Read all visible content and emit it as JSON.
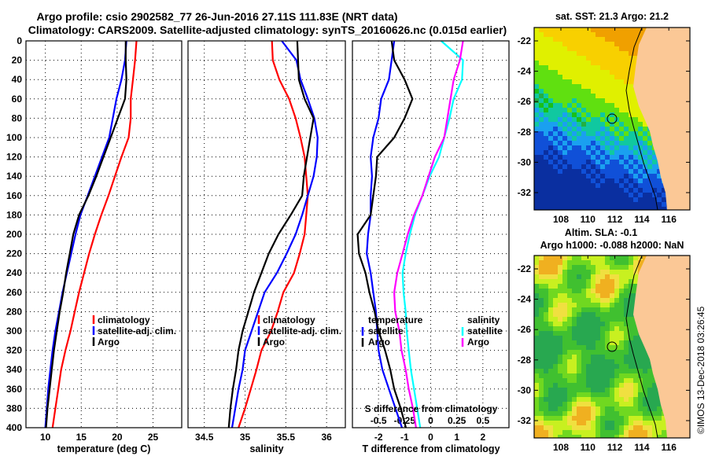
{
  "header": {
    "title_line1": "Argo profile: csio 2902582_77 26-Jun-2016 27.11S 111.83E (NRT data)",
    "title_line2": "Climatology: CARS2009. Satellite-adjusted climatology: synTS_20160626.nc (0.015d earlier)"
  },
  "colors": {
    "climatology": "#ff0000",
    "satellite": "#0000ff",
    "argo": "#000000",
    "salinity_satellite": "#00ffff",
    "salinity_argo": "#ff00ff",
    "land": "#fbc896"
  },
  "chart_data": [
    {
      "type": "line",
      "name": "temperature-profile",
      "xlabel": "temperature (deg C)",
      "ylabel": "",
      "xlim": [
        7.3,
        29.0
      ],
      "ylim": [
        400,
        0
      ],
      "xticks": [
        10,
        15,
        20,
        25
      ],
      "yticks": [
        0,
        20,
        40,
        60,
        80,
        100,
        120,
        140,
        160,
        180,
        200,
        220,
        240,
        260,
        280,
        300,
        320,
        340,
        360,
        380,
        400
      ],
      "grid": true,
      "legend": {
        "placement": "lower-right",
        "entries": [
          "climatology",
          "satellite-adj. clim.",
          "Argo"
        ]
      },
      "depth": [
        0,
        20,
        40,
        60,
        80,
        100,
        120,
        140,
        160,
        180,
        200,
        220,
        240,
        260,
        280,
        300,
        320,
        340,
        360,
        380,
        400
      ],
      "series": [
        {
          "name": "climatology",
          "color": "#ff0000",
          "values": [
            22.7,
            22.5,
            22.2,
            21.9,
            21.9,
            21.6,
            20.6,
            19.7,
            18.8,
            17.8,
            16.9,
            16.1,
            15.4,
            14.7,
            14.1,
            13.5,
            12.8,
            12.2,
            11.8,
            11.4,
            11.0
          ]
        },
        {
          "name": "satellite-adj. clim.",
          "color": "#0000ff",
          "values": [
            21.3,
            21.1,
            20.6,
            19.9,
            19.4,
            18.9,
            17.9,
            16.9,
            15.9,
            14.9,
            14.2,
            13.6,
            13.0,
            12.4,
            11.9,
            11.4,
            11.0,
            10.7,
            10.4,
            10.2,
            10.0
          ]
        },
        {
          "name": "Argo",
          "color": "#000000",
          "values": [
            21.2,
            21.2,
            21.3,
            21.1,
            20.1,
            19.1,
            18.1,
            17.1,
            16.0,
            14.7,
            13.9,
            13.4,
            12.9,
            12.5,
            12.0,
            11.6,
            11.2,
            10.9,
            10.6,
            10.3,
            10.1
          ]
        }
      ]
    },
    {
      "type": "line",
      "name": "salinity-profile",
      "xlabel": "salinity",
      "ylabel": "",
      "xlim": [
        34.3,
        36.23
      ],
      "ylim": [
        400,
        0
      ],
      "xticks": [
        34.5,
        35,
        35.5,
        36
      ],
      "yticks": [
        0,
        20,
        40,
        60,
        80,
        100,
        120,
        140,
        160,
        180,
        200,
        220,
        240,
        260,
        280,
        300,
        320,
        340,
        360,
        380,
        400
      ],
      "grid": true,
      "legend": {
        "placement": "lower-right",
        "entries": [
          "climatology",
          "satellite-adj. clim.",
          "Argo"
        ]
      },
      "depth": [
        0,
        20,
        40,
        60,
        80,
        100,
        120,
        140,
        160,
        180,
        200,
        220,
        240,
        260,
        280,
        300,
        320,
        340,
        360,
        380,
        400
      ],
      "series": [
        {
          "name": "climatology",
          "color": "#ff0000",
          "values": [
            35.33,
            35.34,
            35.42,
            35.54,
            35.62,
            35.68,
            35.73,
            35.75,
            35.77,
            35.75,
            35.73,
            35.67,
            35.6,
            35.47,
            35.4,
            35.32,
            35.2,
            35.14,
            35.07,
            35.0,
            34.92
          ]
        },
        {
          "name": "satellite-adj. clim.",
          "color": "#0000ff",
          "values": [
            35.45,
            35.63,
            35.68,
            35.77,
            35.85,
            35.89,
            35.88,
            35.84,
            35.77,
            35.7,
            35.62,
            35.51,
            35.39,
            35.24,
            35.16,
            35.08,
            35.0,
            34.97,
            34.92,
            34.88,
            34.84
          ]
        },
        {
          "name": "Argo",
          "color": "#000000",
          "values": [
            35.64,
            35.65,
            35.66,
            35.73,
            35.84,
            35.8,
            35.76,
            35.72,
            35.7,
            35.56,
            35.41,
            35.29,
            35.2,
            35.11,
            35.04,
            34.97,
            34.92,
            34.89,
            34.85,
            34.82,
            34.8
          ]
        }
      ]
    },
    {
      "type": "line",
      "name": "difference-profile",
      "xlabel": "T difference from climatology",
      "x2label": "S difference from climatology",
      "xlim": [
        -3,
        3
      ],
      "x2lim": [
        -0.75,
        0.75
      ],
      "ylim": [
        400,
        0
      ],
      "xticks": [
        -2,
        -1,
        0,
        1,
        2
      ],
      "x2ticks": [
        "-0.5",
        "-0.25",
        "0",
        "0.25",
        "0.5"
      ],
      "grid": true,
      "legend": {
        "placement": "lower",
        "groups": [
          {
            "title": "temperature",
            "entries": [
              "satellite",
              "Argo"
            ]
          },
          {
            "title": "salinity",
            "entries": [
              "satellite",
              "Argo"
            ]
          }
        ]
      },
      "depth": [
        0,
        20,
        40,
        60,
        80,
        100,
        120,
        140,
        160,
        180,
        200,
        220,
        240,
        260,
        280,
        300,
        320,
        340,
        360,
        380,
        400
      ],
      "series": [
        {
          "name": "temperature satellite",
          "color": "#0000ff",
          "axis": "T",
          "values": [
            -1.4,
            -1.5,
            -1.6,
            -1.9,
            -2.0,
            -2.2,
            -2.3,
            -2.25,
            -2.3,
            -2.3,
            -2.4,
            -2.45,
            -2.3,
            -2.2,
            -2.1,
            -2.05,
            -2.0,
            -1.85,
            -1.6,
            -1.35,
            -1.1
          ]
        },
        {
          "name": "temperature Argo",
          "color": "#000000",
          "axis": "T",
          "values": [
            -1.5,
            -1.4,
            -1.0,
            -0.7,
            -1.0,
            -1.4,
            -2.05,
            -2.1,
            -2.2,
            -2.3,
            -2.8,
            -2.75,
            -2.5,
            -2.35,
            -2.15,
            -2.0,
            -1.75,
            -1.55,
            -1.4,
            -1.15,
            -0.95
          ]
        },
        {
          "name": "salinity satellite",
          "color": "#00ffff",
          "axis": "S",
          "values": [
            0.1,
            0.31,
            0.3,
            0.22,
            0.18,
            0.13,
            0.08,
            -0.01,
            -0.08,
            -0.15,
            -0.2,
            -0.24,
            -0.27,
            -0.26,
            -0.24,
            -0.23,
            -0.21,
            -0.19,
            -0.16,
            -0.13,
            -0.1
          ]
        },
        {
          "name": "salinity Argo",
          "color": "#ff00ff",
          "axis": "S",
          "values": [
            0.31,
            0.28,
            0.22,
            0.19,
            0.16,
            0.13,
            0.04,
            -0.02,
            -0.08,
            -0.16,
            -0.22,
            -0.27,
            -0.32,
            -0.35,
            -0.34,
            -0.3,
            -0.28,
            -0.24,
            -0.21,
            -0.17,
            -0.14
          ]
        }
      ]
    }
  ],
  "maps": [
    {
      "name": "sst-map",
      "title": "sat. SST: 21.3 Argo: 21.2",
      "lat_ticks": [
        "-22",
        "-24",
        "-26",
        "-28",
        "-30",
        "-32"
      ],
      "lon_ticks": [
        "108",
        "110",
        "112",
        "114",
        "116"
      ],
      "argo_position": {
        "lat": -27.11,
        "lon": 111.83
      }
    },
    {
      "name": "sla-map",
      "title_line1": "Altim. SLA: -0.1",
      "title_line2": "Argo h1000: -0.088 h2000: NaN",
      "lat_ticks": [
        "-22",
        "-24",
        "-26",
        "-28",
        "-30",
        "-32"
      ],
      "lon_ticks": [
        "108",
        "110",
        "112",
        "114",
        "116"
      ],
      "argo_position": {
        "lat": -27.11,
        "lon": 111.83
      }
    }
  ],
  "footer": {
    "copyright": "©IMOS 13-Dec-2018 03:26:45"
  }
}
